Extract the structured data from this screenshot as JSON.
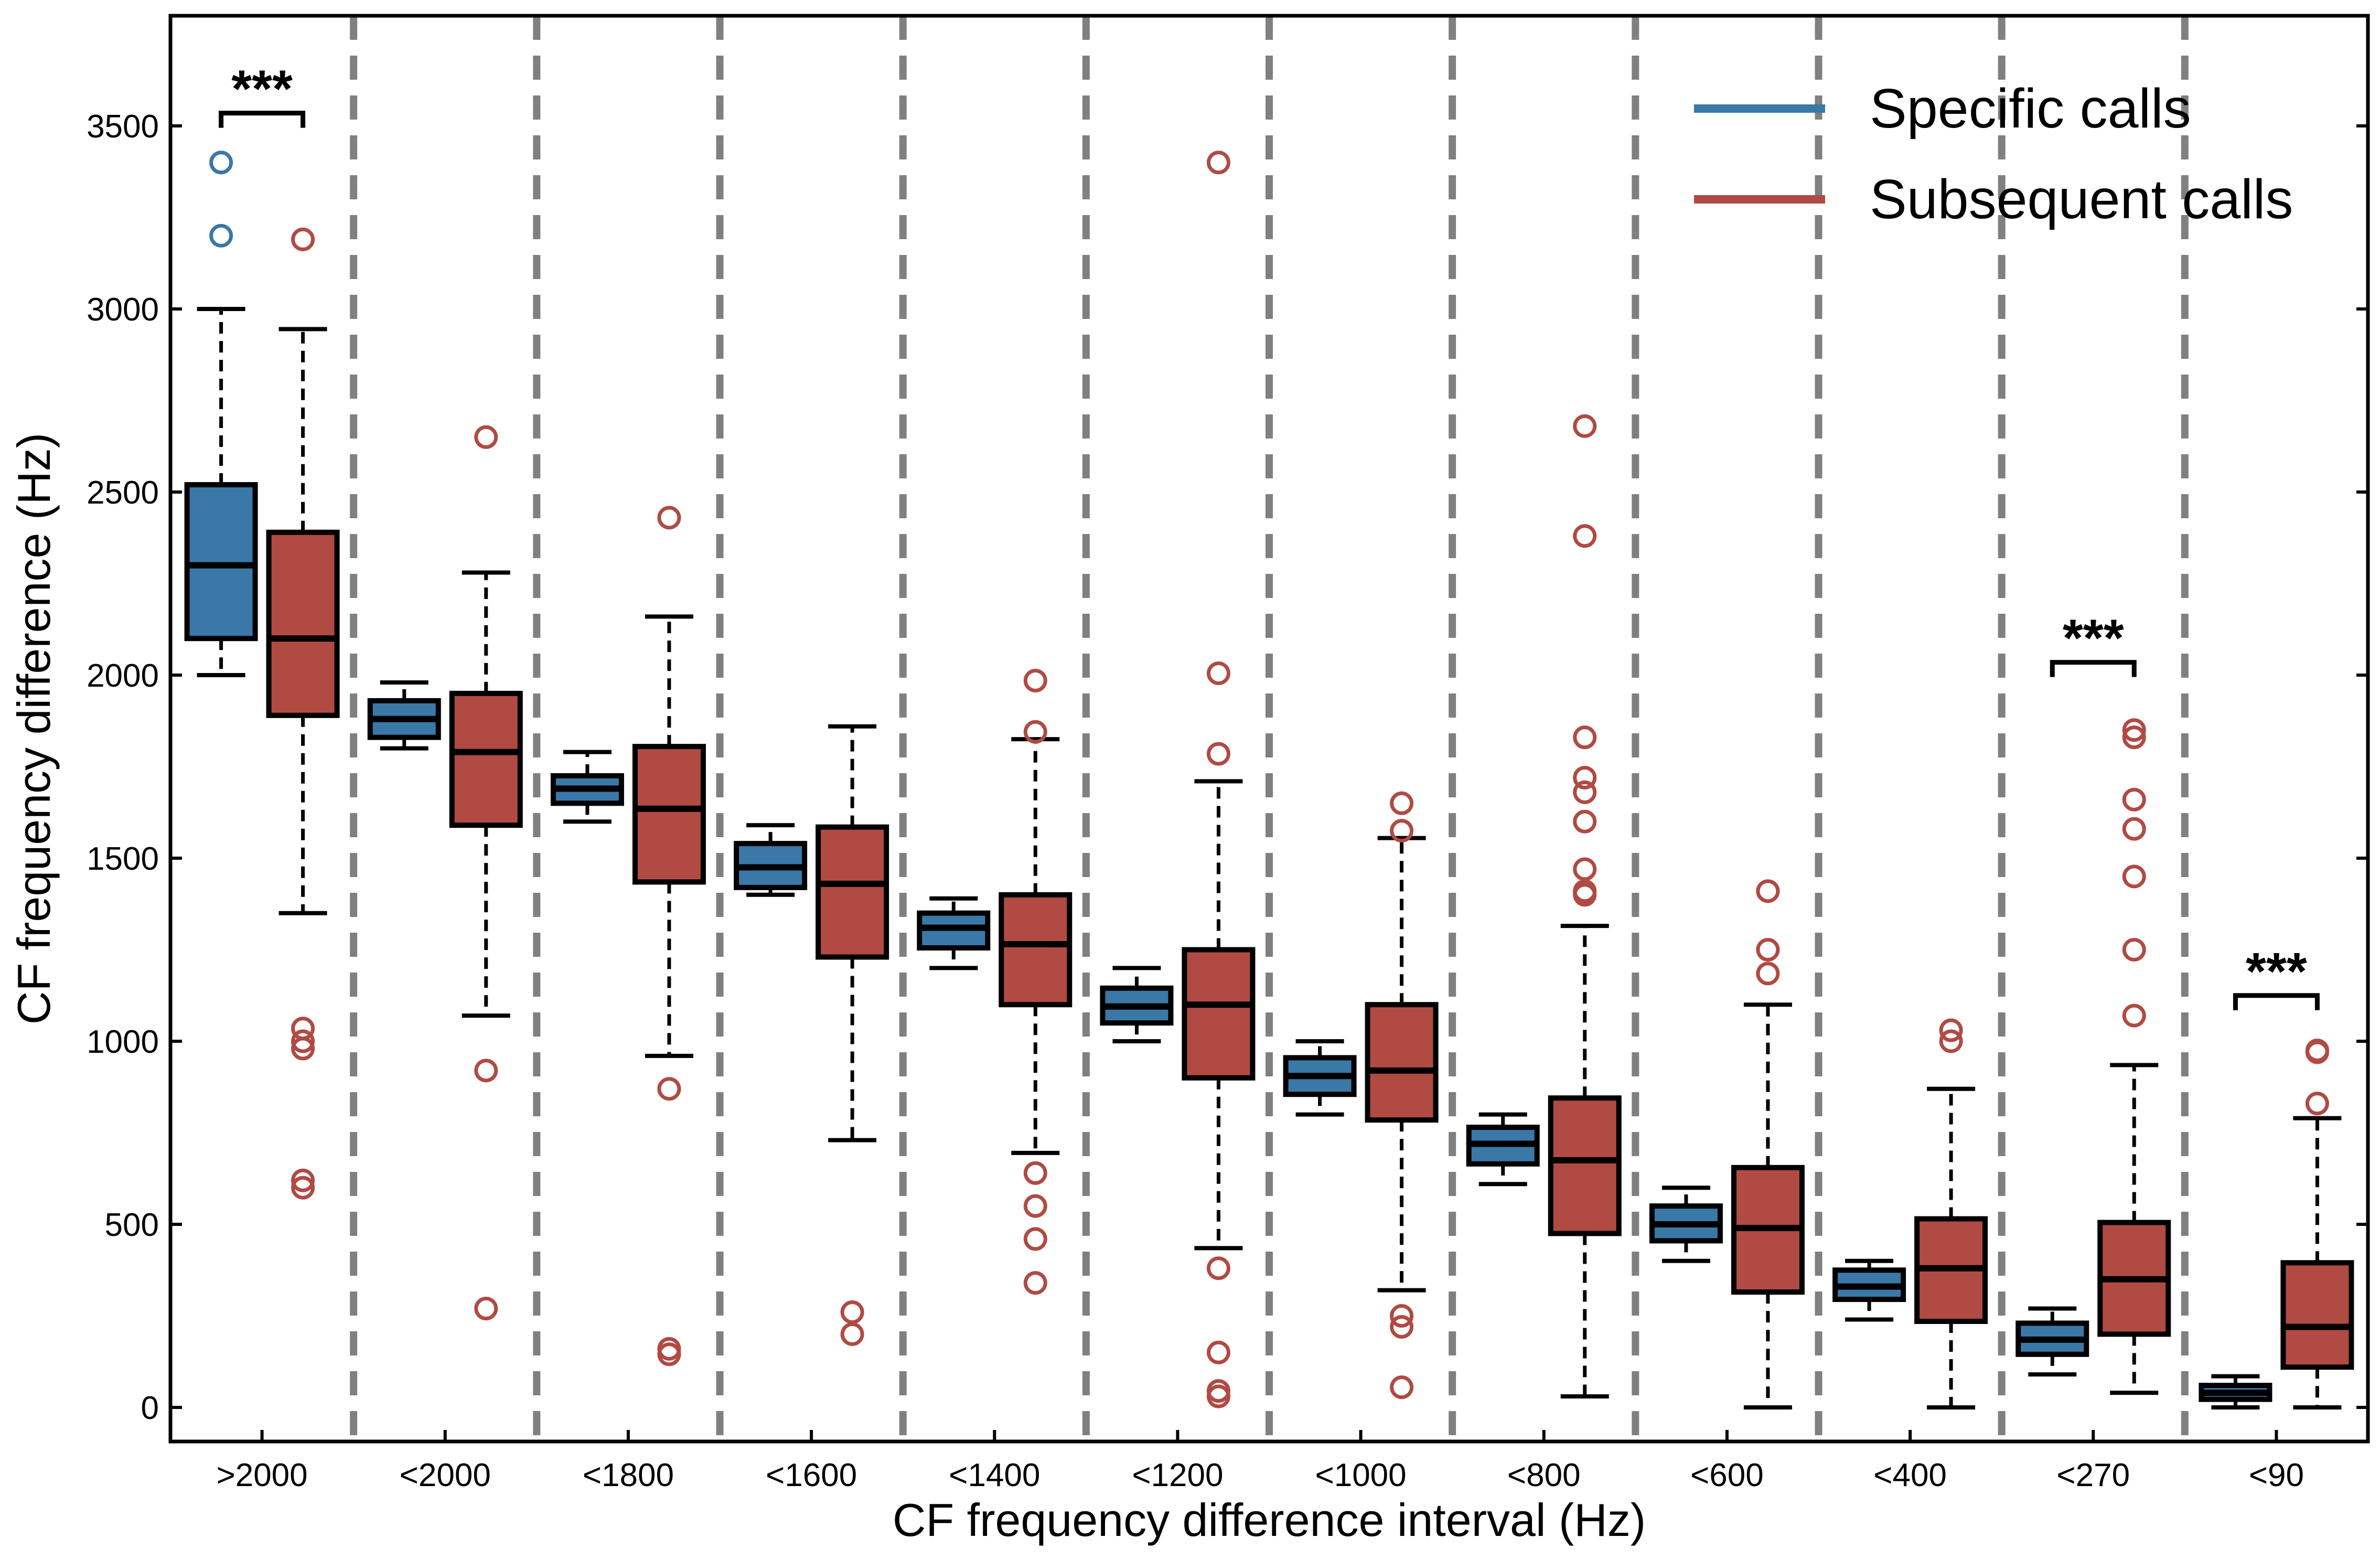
{
  "chart_data": {
    "type": "box",
    "xlabel": "CF frequency difference interval (Hz)",
    "ylabel": "CF frequency difference (Hz)",
    "ylim": [
      -100,
      3750
    ],
    "yticks": [
      0,
      500,
      1000,
      1500,
      2000,
      2500,
      3000,
      3500
    ],
    "categories": [
      ">2000",
      "<2000",
      "<1800",
      "<1600",
      "<1400",
      "<1200",
      "<1000",
      "<800",
      "<600",
      "<400",
      "<270",
      "<90"
    ],
    "legend": {
      "placement": "top-right"
    },
    "grid": false,
    "series": [
      {
        "name": "Specific calls",
        "color": "#3a78a8",
        "outlier_color": "#3a78a8",
        "boxes": [
          {
            "whisker_low": 2000,
            "q1": 2100,
            "median": 2300,
            "q3": 2520,
            "whisker_high": 3000,
            "outliers": [
              3200,
              3400
            ]
          },
          {
            "whisker_low": 1800,
            "q1": 1830,
            "median": 1880,
            "q3": 1930,
            "whisker_high": 1980,
            "outliers": []
          },
          {
            "whisker_low": 1600,
            "q1": 1650,
            "median": 1690,
            "q3": 1725,
            "whisker_high": 1790,
            "outliers": []
          },
          {
            "whisker_low": 1400,
            "q1": 1420,
            "median": 1475,
            "q3": 1540,
            "whisker_high": 1590,
            "outliers": []
          },
          {
            "whisker_low": 1200,
            "q1": 1255,
            "median": 1310,
            "q3": 1350,
            "whisker_high": 1390,
            "outliers": []
          },
          {
            "whisker_low": 1000,
            "q1": 1050,
            "median": 1095,
            "q3": 1145,
            "whisker_high": 1200,
            "outliers": []
          },
          {
            "whisker_low": 800,
            "q1": 855,
            "median": 905,
            "q3": 955,
            "whisker_high": 1000,
            "outliers": []
          },
          {
            "whisker_low": 610,
            "q1": 665,
            "median": 720,
            "q3": 765,
            "whisker_high": 800,
            "outliers": []
          },
          {
            "whisker_low": 400,
            "q1": 455,
            "median": 500,
            "q3": 550,
            "whisker_high": 600,
            "outliers": []
          },
          {
            "whisker_low": 240,
            "q1": 295,
            "median": 330,
            "q3": 375,
            "whisker_high": 400,
            "outliers": []
          },
          {
            "whisker_low": 90,
            "q1": 145,
            "median": 185,
            "q3": 230,
            "whisker_high": 270,
            "outliers": []
          },
          {
            "whisker_low": 0,
            "q1": 22,
            "median": 40,
            "q3": 60,
            "whisker_high": 85,
            "outliers": []
          }
        ]
      },
      {
        "name": "Subsequent calls",
        "color": "#b04a43",
        "outlier_color": "#b04a43",
        "boxes": [
          {
            "whisker_low": 1350,
            "q1": 1890,
            "median": 2100,
            "q3": 2390,
            "whisker_high": 2945,
            "outliers": [
              3190,
              1035,
              1000,
              980,
              620,
              600
            ]
          },
          {
            "whisker_low": 1070,
            "q1": 1590,
            "median": 1790,
            "q3": 1950,
            "whisker_high": 2280,
            "outliers": [
              2650,
              920,
              270
            ]
          },
          {
            "whisker_low": 960,
            "q1": 1435,
            "median": 1635,
            "q3": 1805,
            "whisker_high": 2160,
            "outliers": [
              2430,
              870,
              160,
              145
            ]
          },
          {
            "whisker_low": 730,
            "q1": 1230,
            "median": 1430,
            "q3": 1585,
            "whisker_high": 1860,
            "outliers": [
              260,
              200
            ]
          },
          {
            "whisker_low": 695,
            "q1": 1100,
            "median": 1265,
            "q3": 1400,
            "whisker_high": 1825,
            "outliers": [
              1985,
              1845,
              640,
              550,
              460,
              340
            ]
          },
          {
            "whisker_low": 435,
            "q1": 900,
            "median": 1100,
            "q3": 1250,
            "whisker_high": 1710,
            "outliers": [
              3400,
              2005,
              1785,
              380,
              150,
              45,
              30
            ]
          },
          {
            "whisker_low": 320,
            "q1": 785,
            "median": 920,
            "q3": 1100,
            "whisker_high": 1555,
            "outliers": [
              1650,
              1575,
              250,
              220,
              55
            ]
          },
          {
            "whisker_low": 30,
            "q1": 475,
            "median": 675,
            "q3": 845,
            "whisker_high": 1315,
            "outliers": [
              2680,
              2380,
              1830,
              1720,
              1680,
              1600,
              1470,
              1410,
              1400
            ]
          },
          {
            "whisker_low": 0,
            "q1": 315,
            "median": 490,
            "q3": 655,
            "whisker_high": 1100,
            "outliers": [
              1410,
              1250,
              1185
            ]
          },
          {
            "whisker_low": 0,
            "q1": 235,
            "median": 380,
            "q3": 515,
            "whisker_high": 870,
            "outliers": [
              1030,
              1000
            ]
          },
          {
            "whisker_low": 40,
            "q1": 200,
            "median": 350,
            "q3": 505,
            "whisker_high": 935,
            "outliers": [
              1850,
              1830,
              1660,
              1580,
              1450,
              1250,
              1070
            ]
          },
          {
            "whisker_low": 0,
            "q1": 110,
            "median": 220,
            "q3": 395,
            "whisker_high": 790,
            "outliers": [
              975,
              970,
              830
            ]
          }
        ]
      }
    ],
    "annotations": [
      {
        "category_index": 0,
        "text": "***",
        "y": 3535
      },
      {
        "category_index": 10,
        "text": "***",
        "y": 2035
      },
      {
        "category_index": 11,
        "text": "***",
        "y": 1125
      }
    ]
  }
}
